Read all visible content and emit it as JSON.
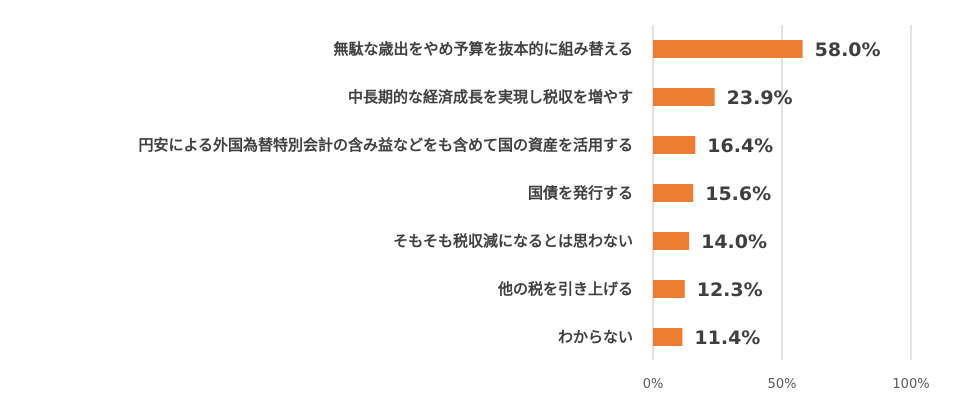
{
  "chart_data": {
    "type": "bar",
    "orientation": "horizontal",
    "categories": [
      "無駄な歳出をやめ予算を抜本的に組み替える",
      "中長期的な経済成長を実現し税収を増やす",
      "円安による外国為替特別会計の含み益などをも含めて国の資産を活用する",
      "国債を発行する",
      "そもそも税収減になるとは思わない",
      "他の税を引き上げる",
      "わからない"
    ],
    "values": [
      58.0,
      23.9,
      16.4,
      15.6,
      14.0,
      12.3,
      11.4
    ],
    "value_labels": [
      "58.0%",
      "23.9%",
      "16.4%",
      "15.6%",
      "14.0%",
      "12.3%",
      "11.4%"
    ],
    "xlim": [
      0,
      100
    ],
    "x_ticks": [
      0,
      50,
      100
    ],
    "x_tick_labels": [
      "0%",
      "50%",
      "100%"
    ],
    "title": "",
    "xlabel": "",
    "ylabel": "",
    "grid": "vertical",
    "legend": "none",
    "bar_color": "#ed7d31",
    "grid_color": "#d9d9d9",
    "text_color": "#3f3f3f"
  }
}
